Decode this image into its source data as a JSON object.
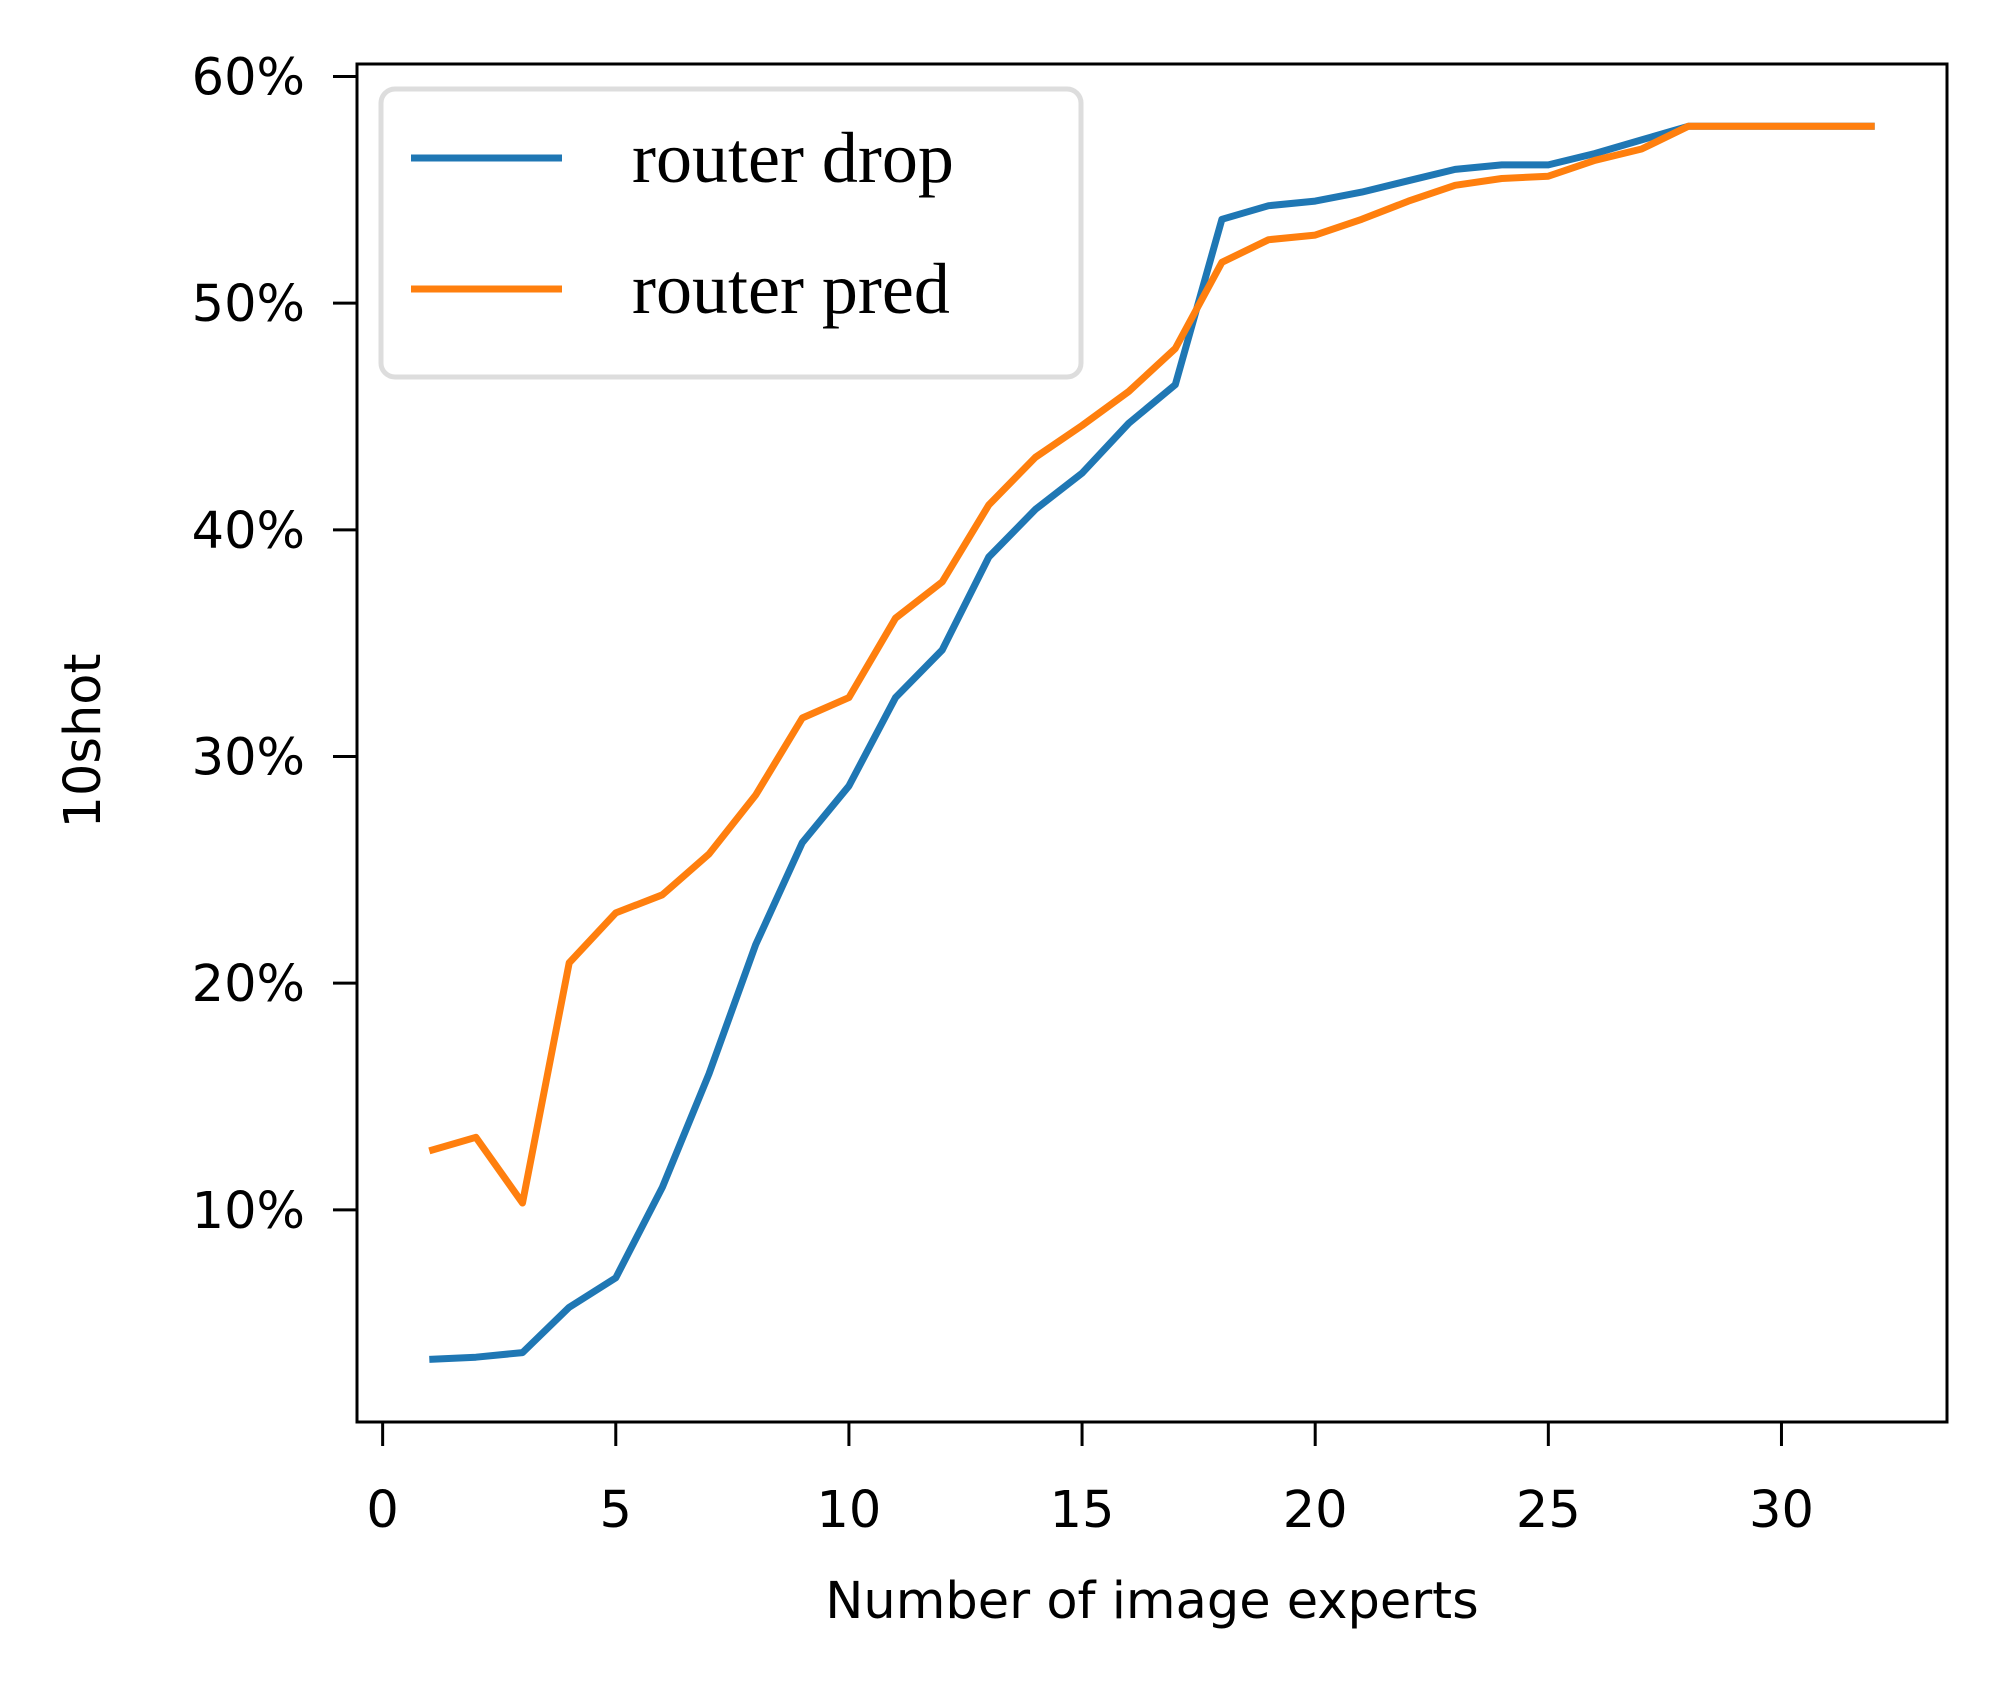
{
  "chart_data": {
    "type": "line",
    "title": "",
    "xlabel": "Number of image experts",
    "ylabel": "10shot",
    "xlim": [
      -0.55,
      33.55
    ],
    "ylim": [
      0.64,
      60.55
    ],
    "grid": false,
    "legend_position": "upper left",
    "xticks": [
      0,
      5,
      10,
      15,
      20,
      25,
      30
    ],
    "xtick_labels": [
      "0",
      "5",
      "10",
      "15",
      "20",
      "25",
      "30"
    ],
    "yticks": [
      10,
      20,
      30,
      40,
      50,
      60
    ],
    "ytick_labels": [
      "10%",
      "20%",
      "30%",
      "40%",
      "50%",
      "60%"
    ],
    "x": [
      1,
      2,
      3,
      4,
      5,
      6,
      7,
      8,
      9,
      10,
      11,
      12,
      13,
      14,
      15,
      16,
      17,
      18,
      19,
      20,
      21,
      22,
      23,
      24,
      25,
      26,
      27,
      28,
      29,
      30,
      31,
      32
    ],
    "series": [
      {
        "name": "router drop",
        "color": "#1f77b4",
        "values": [
          3.4,
          3.5,
          3.7,
          5.7,
          7.0,
          11.0,
          16.0,
          21.7,
          26.2,
          28.7,
          32.6,
          34.7,
          38.8,
          40.9,
          42.5,
          44.7,
          46.4,
          53.7,
          54.3,
          54.5,
          54.9,
          55.4,
          55.9,
          56.1,
          56.1,
          56.6,
          57.2,
          57.8,
          57.8,
          57.8,
          57.8,
          57.8
        ]
      },
      {
        "name": "router pred",
        "color": "#ff7f0e",
        "values": [
          12.6,
          13.2,
          10.3,
          20.9,
          23.1,
          23.9,
          25.7,
          28.3,
          31.7,
          32.6,
          36.1,
          37.7,
          41.1,
          43.2,
          44.6,
          46.1,
          48.0,
          51.8,
          52.8,
          53.0,
          53.7,
          54.5,
          55.2,
          55.5,
          55.6,
          56.3,
          56.8,
          57.8,
          57.8,
          57.8,
          57.8,
          57.8
        ]
      }
    ]
  }
}
